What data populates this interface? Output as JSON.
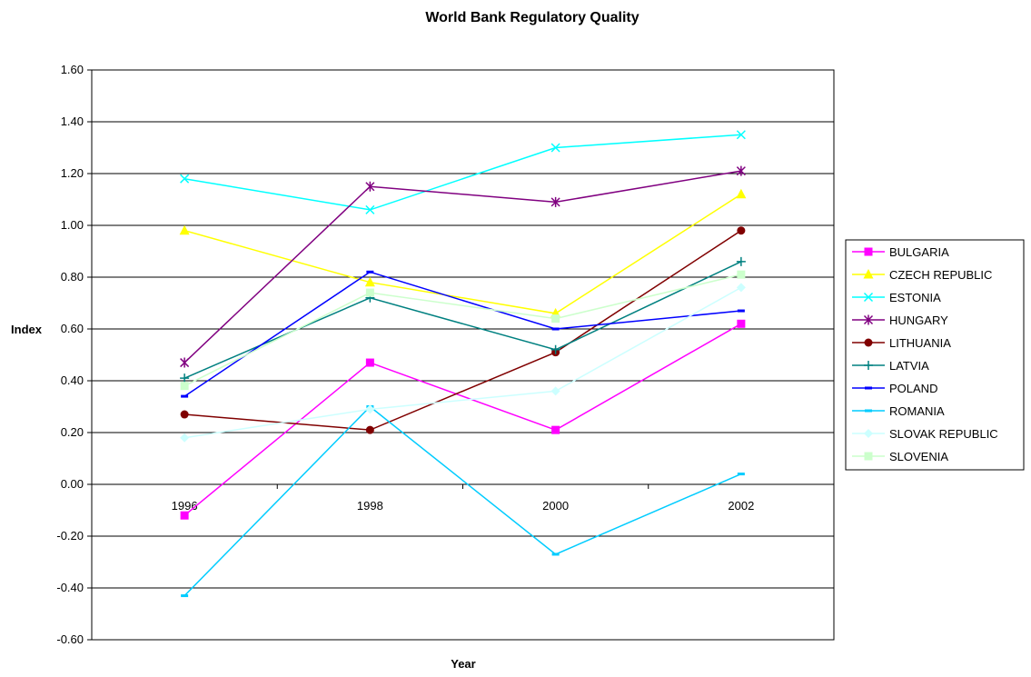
{
  "chart_data": {
    "type": "line",
    "title": "World Bank Regulatory Quality",
    "xlabel": "Year",
    "ylabel": "Index",
    "categories": [
      "1996",
      "1998",
      "2000",
      "2002"
    ],
    "ylim": [
      -0.6,
      1.6
    ],
    "yticks": [
      -0.6,
      -0.4,
      -0.2,
      0.0,
      0.2,
      0.4,
      0.6,
      0.8,
      1.0,
      1.2,
      1.4,
      1.6
    ],
    "ytick_labels": [
      "-0.60",
      "-0.40",
      "-0.20",
      "0.00",
      "0.20",
      "0.40",
      "0.60",
      "0.80",
      "1.00",
      "1.20",
      "1.40",
      "1.60"
    ],
    "grid": true,
    "legend_position": "right",
    "series": [
      {
        "name": "BULGARIA",
        "color": "#ff00ff",
        "marker": "square",
        "values": [
          -0.12,
          0.47,
          0.21,
          0.62
        ]
      },
      {
        "name": "CZECH REPUBLIC",
        "color": "#ffff00",
        "marker": "triangle",
        "values": [
          0.98,
          0.78,
          0.66,
          1.12
        ]
      },
      {
        "name": "ESTONIA",
        "color": "#00ffff",
        "marker": "x",
        "values": [
          1.18,
          1.06,
          1.3,
          1.35
        ]
      },
      {
        "name": "HUNGARY",
        "color": "#800080",
        "marker": "star",
        "values": [
          0.47,
          1.15,
          1.09,
          1.21
        ]
      },
      {
        "name": "LITHUANIA",
        "color": "#800000",
        "marker": "circle",
        "values": [
          0.27,
          0.21,
          0.51,
          0.98
        ]
      },
      {
        "name": "LATVIA",
        "color": "#008080",
        "marker": "plus",
        "values": [
          0.41,
          0.72,
          0.52,
          0.86
        ]
      },
      {
        "name": "POLAND",
        "color": "#0000ff",
        "marker": "dash",
        "values": [
          0.34,
          0.82,
          0.6,
          0.67
        ]
      },
      {
        "name": "ROMANIA",
        "color": "#00ccff",
        "marker": "dash",
        "values": [
          -0.43,
          0.3,
          -0.27,
          0.04
        ]
      },
      {
        "name": "SLOVAK REPUBLIC",
        "color": "#ccffff",
        "marker": "diamond",
        "values": [
          0.18,
          0.29,
          0.36,
          0.76
        ]
      },
      {
        "name": "SLOVENIA",
        "color": "#ccffcc",
        "marker": "square",
        "values": [
          0.38,
          0.74,
          0.64,
          0.81
        ]
      }
    ]
  }
}
